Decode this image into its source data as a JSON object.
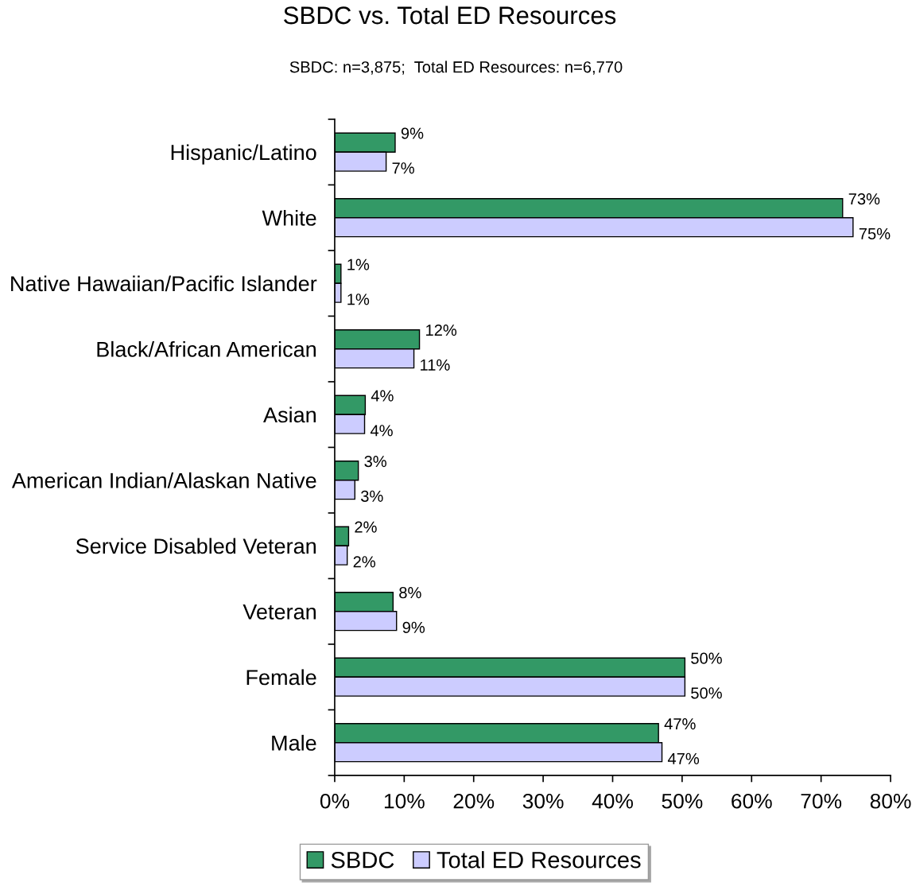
{
  "chart_data": {
    "type": "bar",
    "orientation": "horizontal",
    "title": "SBDC vs. Total ED Resources",
    "subtitle": "SBDC: n=3,875;  Total ED Resources: n=6,770",
    "categories": [
      "Hispanic/Latino",
      "White",
      "Native Hawaiian/Pacific Islander",
      "Black/African American",
      "Asian",
      "American Indian/Alaskan Native",
      "Service Disabled Veteran",
      "Veteran",
      "Female",
      "Male"
    ],
    "series": [
      {
        "name": "SBDC",
        "color": "#339966",
        "values": [
          8.7,
          73.1,
          0.9,
          12.2,
          4.4,
          3.4,
          2.0,
          8.4,
          50.4,
          46.6
        ],
        "value_labels": [
          "9%",
          "73%",
          "1%",
          "12%",
          "4%",
          "3%",
          "2%",
          "8%",
          "50%",
          "47%"
        ]
      },
      {
        "name": "Total ED Resources",
        "color": "#ccccff",
        "values": [
          7.4,
          74.6,
          0.9,
          11.4,
          4.3,
          2.9,
          1.8,
          8.9,
          50.4,
          47.1
        ],
        "value_labels": [
          "7%",
          "75%",
          "1%",
          "11%",
          "4%",
          "3%",
          "2%",
          "9%",
          "50%",
          "47%"
        ]
      }
    ],
    "xlim": [
      0,
      80
    ],
    "xticks": [
      {
        "value": 0,
        "label": "0%"
      },
      {
        "value": 10,
        "label": "10%"
      },
      {
        "value": 20,
        "label": "20%"
      },
      {
        "value": 30,
        "label": "30%"
      },
      {
        "value": 40,
        "label": "40%"
      },
      {
        "value": 50,
        "label": "50%"
      },
      {
        "value": 60,
        "label": "60%"
      },
      {
        "value": 70,
        "label": "70%"
      },
      {
        "value": 80,
        "label": "80%"
      }
    ],
    "legend": "bottom"
  }
}
